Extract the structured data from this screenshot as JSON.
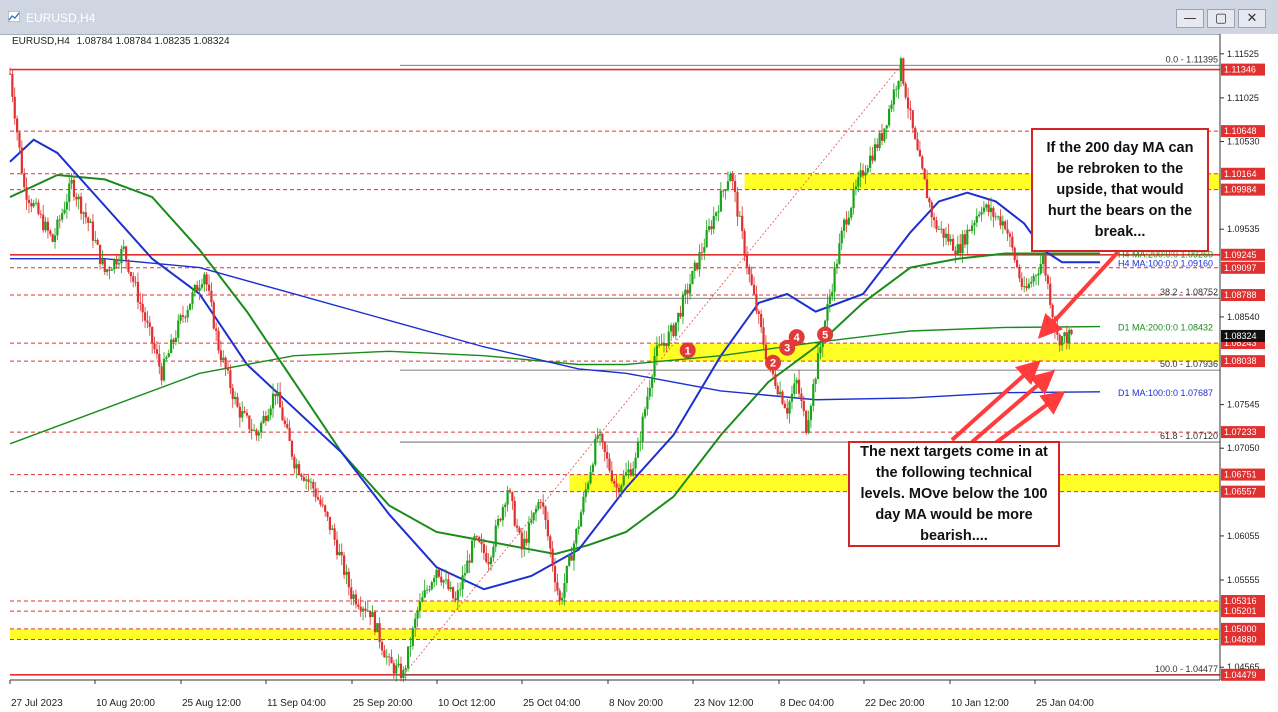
{
  "window": {
    "title": "EURUSD,H4",
    "buttons": {
      "minimize": "—",
      "maximize": "▢",
      "close": "✕"
    }
  },
  "chart_data": {
    "type": "candlestick",
    "symbol_label": "EURUSD,H4",
    "ohlc_label": "1.08784 1.08784 1.08235 1.08324",
    "x_ticks": [
      "27 Jul 2023",
      "10 Aug 20:00",
      "25 Aug 12:00",
      "11 Sep 04:00",
      "25 Sep 20:00",
      "10 Oct 12:00",
      "25 Oct 04:00",
      "8 Nov 20:00",
      "23 Nov 12:00",
      "8 Dec 04:00",
      "22 Dec 20:00",
      "10 Jan 12:00",
      "25 Jan 04:00"
    ],
    "y_ticks": [
      "1.11525",
      "1.11025",
      "1.10530",
      "1.09535",
      "1.08540",
      "1.07545",
      "1.07050",
      "1.06055",
      "1.05555",
      "1.04565"
    ],
    "ylim": [
      1.0442,
      1.1175
    ],
    "current_price": "1.08324",
    "price_path": [
      [
        0,
        1.113
      ],
      [
        3,
        1.1
      ],
      [
        5,
        1.098
      ],
      [
        9,
        1.094
      ],
      [
        13,
        1.1005
      ],
      [
        17,
        1.0955
      ],
      [
        20,
        1.0905
      ],
      [
        24,
        1.093
      ],
      [
        28,
        1.086
      ],
      [
        32,
        1.079
      ],
      [
        36,
        1.085
      ],
      [
        41,
        1.0905
      ],
      [
        44,
        1.082
      ],
      [
        48,
        1.075
      ],
      [
        52,
        1.072
      ],
      [
        56,
        1.077
      ],
      [
        60,
        1.069
      ],
      [
        64,
        1.066
      ],
      [
        68,
        1.061
      ],
      [
        72,
        1.054
      ],
      [
        76,
        1.052
      ],
      [
        80,
        1.046
      ],
      [
        83,
        1.0448
      ],
      [
        86,
        1.052
      ],
      [
        90,
        1.057
      ],
      [
        94,
        1.053
      ],
      [
        98,
        1.06
      ],
      [
        101,
        1.058
      ],
      [
        105,
        1.066
      ],
      [
        108,
        1.059
      ],
      [
        112,
        1.065
      ],
      [
        116,
        1.053
      ],
      [
        120,
        1.062
      ],
      [
        124,
        1.072
      ],
      [
        128,
        1.066
      ],
      [
        132,
        1.069
      ],
      [
        136,
        1.081
      ],
      [
        140,
        1.084
      ],
      [
        144,
        1.09
      ],
      [
        148,
        1.096
      ],
      [
        152,
        1.102
      ],
      [
        156,
        1.09
      ],
      [
        160,
        1.08
      ],
      [
        164,
        1.075
      ],
      [
        166,
        1.078
      ],
      [
        168,
        1.073
      ],
      [
        172,
        1.085
      ],
      [
        176,
        1.096
      ],
      [
        180,
        1.102
      ],
      [
        184,
        1.106
      ],
      [
        188,
        1.1139
      ],
      [
        191,
        1.105
      ],
      [
        195,
        1.096
      ],
      [
        200,
        1.093
      ],
      [
        205,
        1.098
      ],
      [
        210,
        1.096
      ],
      [
        214,
        1.088
      ],
      [
        218,
        1.092
      ],
      [
        221,
        1.083
      ],
      [
        224,
        1.0832
      ]
    ],
    "moving_averages": [
      {
        "name": "H4 MA:200:0:0",
        "value": "1.09260",
        "color": "#1a8c1a",
        "points": [
          [
            0,
            1.099
          ],
          [
            10,
            1.1015
          ],
          [
            20,
            1.101
          ],
          [
            30,
            1.099
          ],
          [
            40,
            1.093
          ],
          [
            50,
            1.086
          ],
          [
            60,
            1.078
          ],
          [
            70,
            1.07
          ],
          [
            80,
            1.064
          ],
          [
            90,
            1.061
          ],
          [
            100,
            1.06
          ],
          [
            110,
            1.059
          ],
          [
            115,
            1.0585
          ],
          [
            122,
            1.0595
          ],
          [
            130,
            1.061
          ],
          [
            140,
            1.065
          ],
          [
            150,
            1.072
          ],
          [
            160,
            1.078
          ],
          [
            170,
            1.082
          ],
          [
            180,
            1.087
          ],
          [
            190,
            1.091
          ],
          [
            200,
            1.092
          ],
          [
            210,
            1.0926
          ],
          [
            230,
            1.0926
          ]
        ]
      },
      {
        "name": "H4 MA:100:0:0",
        "value": "1.09160",
        "color": "#1c2fd1",
        "points": [
          [
            0,
            1.103
          ],
          [
            5,
            1.1055
          ],
          [
            10,
            1.104
          ],
          [
            20,
            1.098
          ],
          [
            30,
            1.092
          ],
          [
            40,
            1.088
          ],
          [
            50,
            1.08
          ],
          [
            60,
            1.075
          ],
          [
            70,
            1.07
          ],
          [
            80,
            1.063
          ],
          [
            90,
            1.057
          ],
          [
            100,
            1.0545
          ],
          [
            110,
            1.056
          ],
          [
            120,
            1.059
          ],
          [
            130,
            1.066
          ],
          [
            140,
            1.072
          ],
          [
            150,
            1.081
          ],
          [
            158,
            1.087
          ],
          [
            164,
            1.088
          ],
          [
            170,
            1.086
          ],
          [
            180,
            1.088
          ],
          [
            190,
            1.095
          ],
          [
            196,
            1.0985
          ],
          [
            202,
            1.0995
          ],
          [
            208,
            1.0985
          ],
          [
            214,
            1.096
          ],
          [
            218,
            1.093
          ],
          [
            222,
            1.0916
          ],
          [
            230,
            1.0916
          ]
        ]
      },
      {
        "name": "D1 MA:200:0:0",
        "value": "1.08432",
        "color": "#1a8c1a",
        "points": [
          [
            0,
            1.071
          ],
          [
            20,
            1.075
          ],
          [
            40,
            1.079
          ],
          [
            60,
            1.081
          ],
          [
            80,
            1.0815
          ],
          [
            100,
            1.081
          ],
          [
            120,
            1.08
          ],
          [
            130,
            1.08
          ],
          [
            150,
            1.081
          ],
          [
            170,
            1.0825
          ],
          [
            190,
            1.0838
          ],
          [
            210,
            1.0842
          ],
          [
            230,
            1.0843
          ]
        ]
      },
      {
        "name": "D1 MA:100:0:0",
        "value": "1.07687",
        "color": "#1c2fd1",
        "points": [
          [
            0,
            1.092
          ],
          [
            20,
            1.092
          ],
          [
            40,
            1.091
          ],
          [
            60,
            1.088
          ],
          [
            80,
            1.085
          ],
          [
            100,
            1.082
          ],
          [
            120,
            1.0795
          ],
          [
            130,
            1.079
          ],
          [
            150,
            1.077
          ],
          [
            170,
            1.076
          ],
          [
            190,
            1.0762
          ],
          [
            210,
            1.0768
          ],
          [
            230,
            1.0769
          ]
        ]
      }
    ],
    "fibonacci": [
      {
        "label": "0.0 - 1.11395",
        "value": 1.11395
      },
      {
        "label": "38.2 - 1.08752",
        "value": 1.08752
      },
      {
        "label": "50.0 - 1.07936",
        "value": 1.07936
      },
      {
        "label": "61.8 - 1.07120",
        "value": 1.0712
      },
      {
        "label": "100.0 - 1.04477",
        "value": 1.04477
      }
    ],
    "level_labels": [
      {
        "label": "1.11346",
        "value": 1.11346,
        "style": "red",
        "line": "solid"
      },
      {
        "label": "1.10648",
        "value": 1.10648,
        "style": "red",
        "line": "dashed"
      },
      {
        "label": "1.10164",
        "value": 1.10164,
        "style": "red",
        "line": "dashed"
      },
      {
        "label": "1.09984",
        "value": 1.09984,
        "style": "red",
        "line": "dashed"
      },
      {
        "label": "1.09245",
        "value": 1.09245,
        "style": "red",
        "line": "solid"
      },
      {
        "label": "1.09097",
        "value": 1.09097,
        "style": "red",
        "line": "dashed"
      },
      {
        "label": "1.08788",
        "value": 1.08788,
        "style": "red",
        "line": "dashed"
      },
      {
        "label": "1.08243",
        "value": 1.08243,
        "style": "red",
        "line": "dashed"
      },
      {
        "label": "1.08038",
        "value": 1.08038,
        "style": "red",
        "line": "dashed"
      },
      {
        "label": "1.07233",
        "value": 1.07233,
        "style": "red",
        "line": "dashed"
      },
      {
        "label": "1.06751",
        "value": 1.06751,
        "style": "red",
        "line": "dashed"
      },
      {
        "label": "1.06557",
        "value": 1.06557,
        "style": "red",
        "line": "dashed"
      },
      {
        "label": "1.05316",
        "value": 1.05316,
        "style": "red",
        "line": "dashed"
      },
      {
        "label": "1.05201",
        "value": 1.05201,
        "style": "red",
        "line": "dashed"
      },
      {
        "label": "1.05000",
        "value": 1.05,
        "style": "red",
        "line": "dashed"
      },
      {
        "label": "1.04880",
        "value": 1.0488,
        "style": "red",
        "line": "dashed"
      },
      {
        "label": "1.04479",
        "value": 1.04479,
        "style": "red",
        "line": "solid"
      }
    ],
    "zones": [
      {
        "from": 1.10164,
        "to": 1.09984,
        "x_start": 155
      },
      {
        "from": 1.08243,
        "to": 1.08038,
        "x_start": 135
      },
      {
        "from": 1.06751,
        "to": 1.06557,
        "x_start": 118
      },
      {
        "from": 1.05316,
        "to": 1.05201,
        "x_start": 86
      },
      {
        "from": 1.05,
        "to": 1.0488,
        "x_start": 0
      }
    ],
    "markers": [
      {
        "label": "1",
        "x": 143,
        "y": 1.0816
      },
      {
        "label": "2",
        "x": 161,
        "y": 1.0802
      },
      {
        "label": "3",
        "x": 164,
        "y": 1.0819
      },
      {
        "label": "4",
        "x": 166,
        "y": 1.0831
      },
      {
        "label": "5",
        "x": 172,
        "y": 1.0834
      }
    ],
    "annotations": [
      "If the 200 day MA can be rebroken to the upside, that would hurt the bears on the break...",
      "The next targets come in at the following technical levels.   MOve below the 100 day MA would be more bearish...."
    ]
  }
}
